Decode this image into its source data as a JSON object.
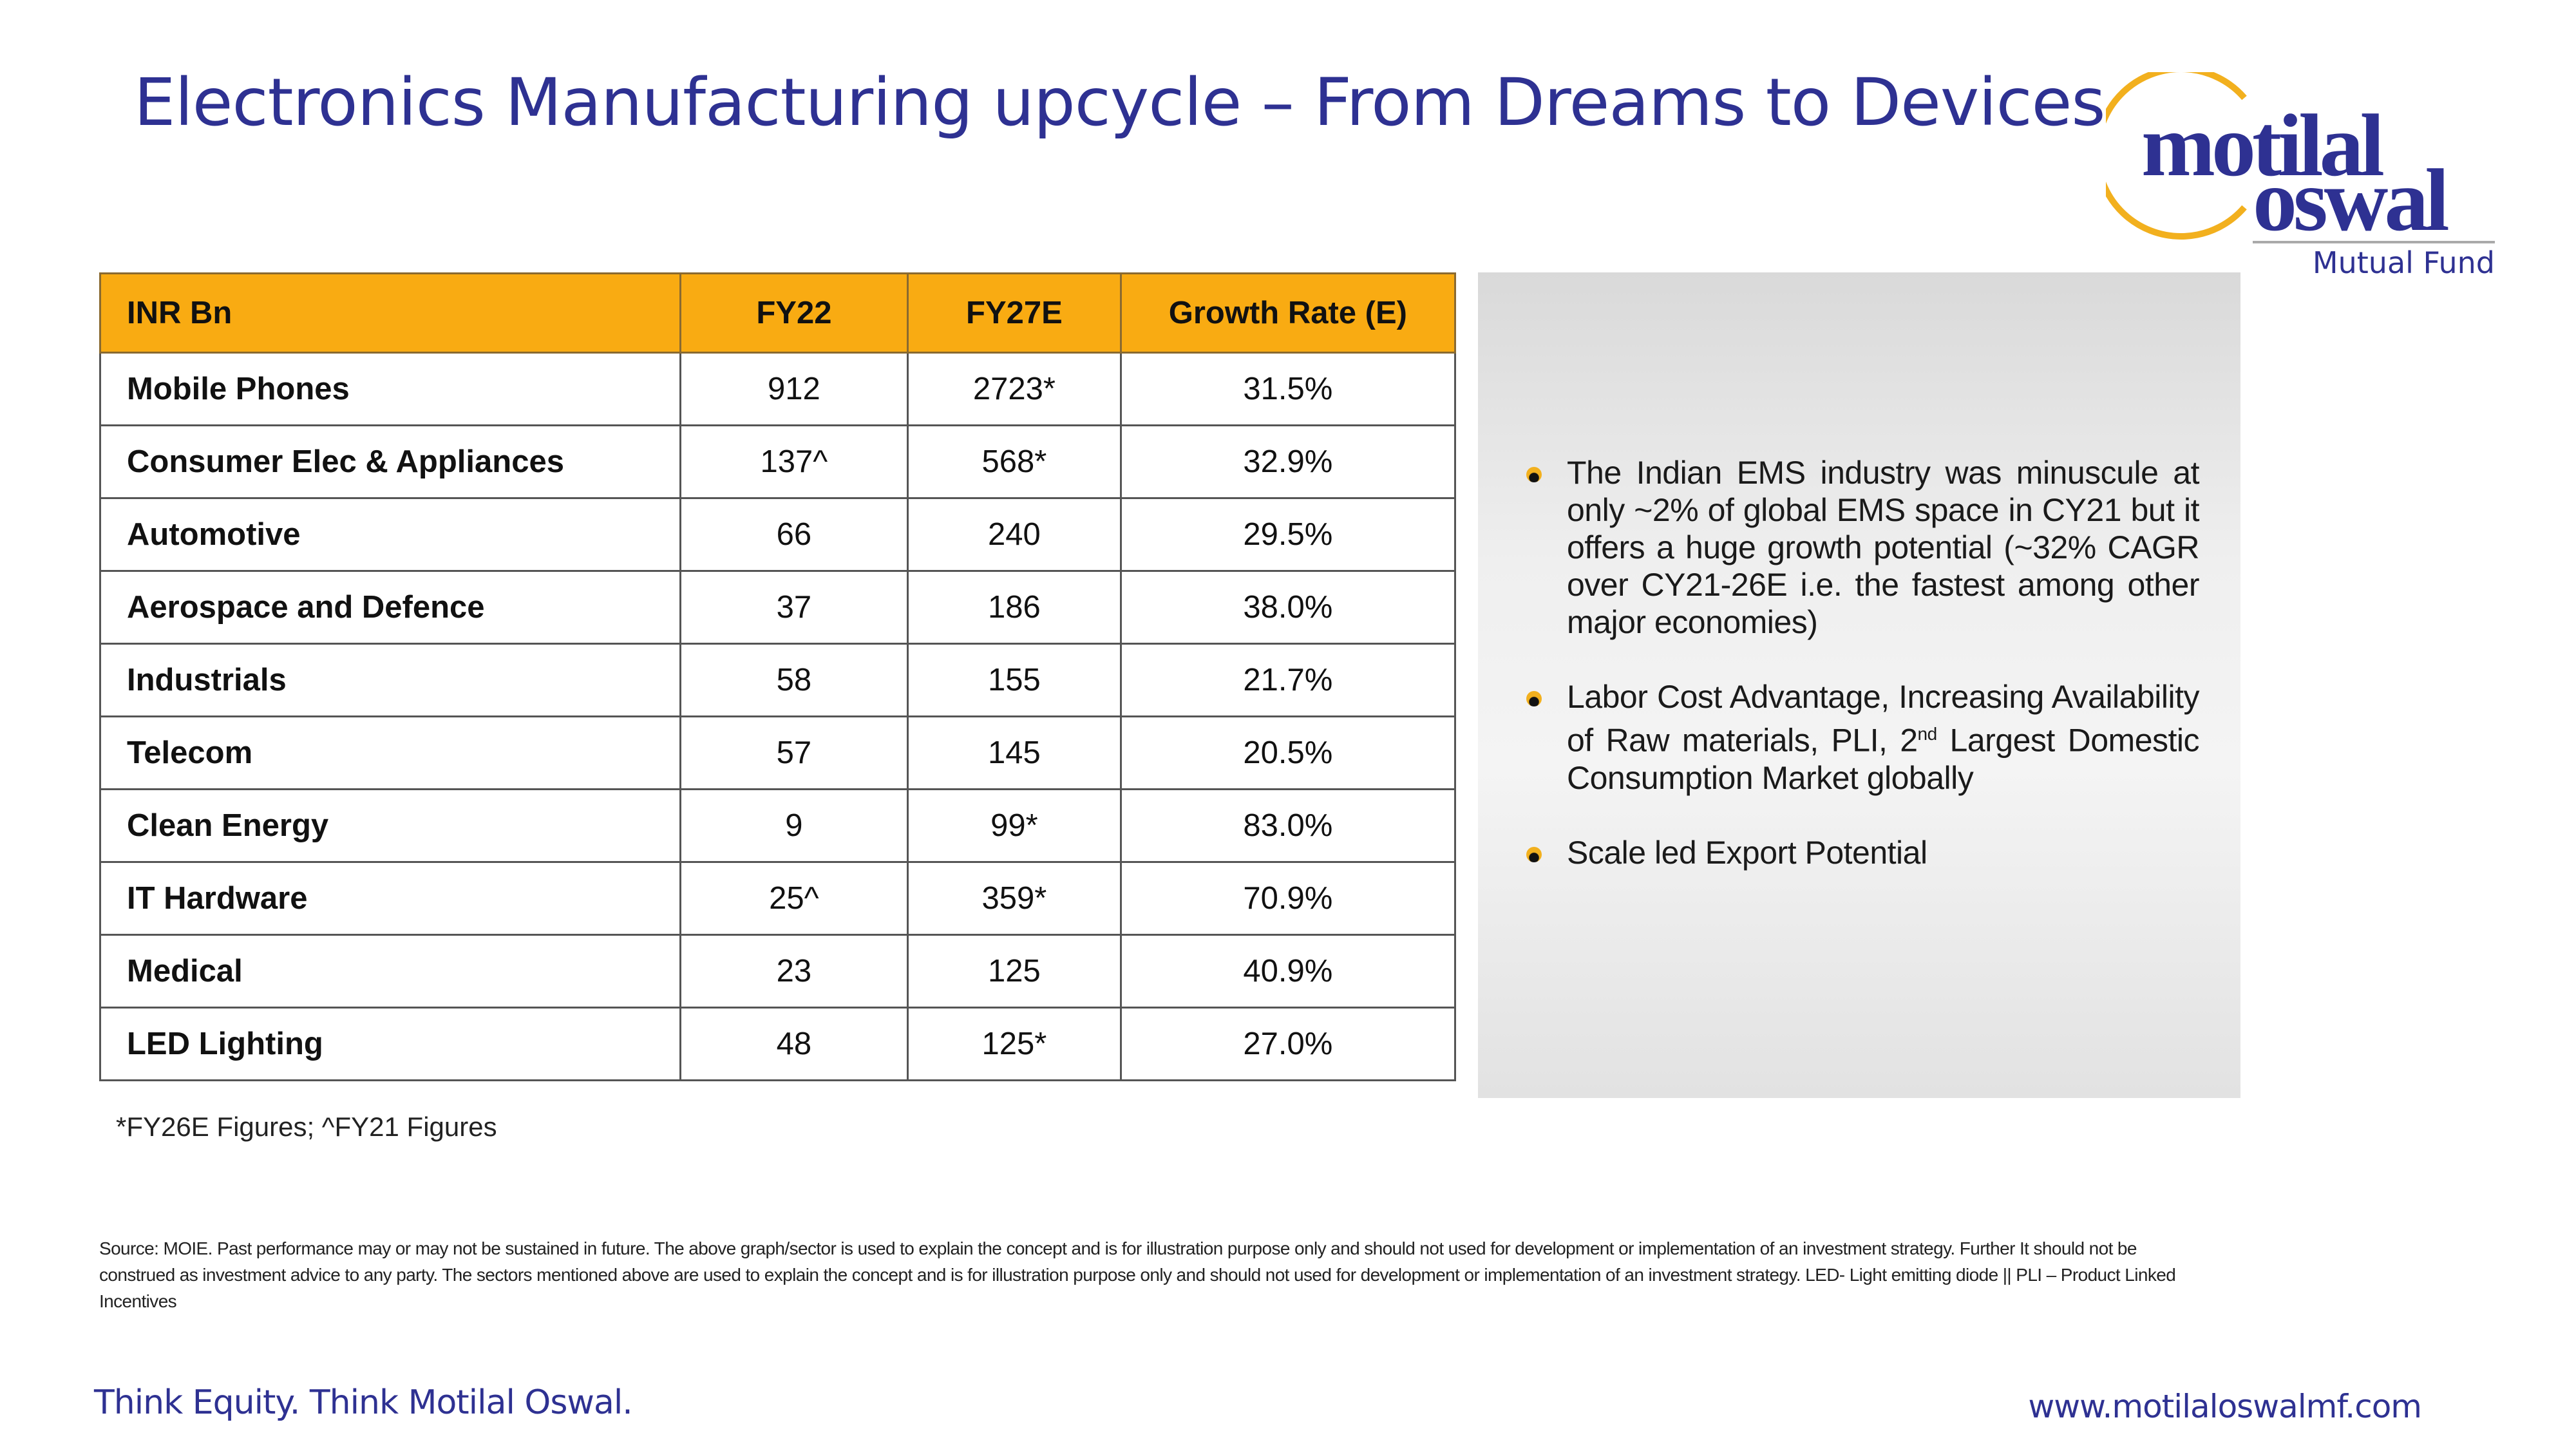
{
  "title": "Electronics Manufacturing upcycle – From Dreams to Devices",
  "logo": {
    "line1": "motilal",
    "line2": "oswal",
    "subtitle": "Mutual Fund",
    "brand_color": "#2e3192",
    "ring_color": "#f2b01e"
  },
  "table": {
    "headers": [
      "INR Bn",
      "FY22",
      "FY27E",
      "Growth Rate (E)"
    ],
    "header_color": "#f9ab12",
    "rows": [
      [
        "Mobile Phones",
        "912",
        "2723*",
        "31.5%"
      ],
      [
        "Consumer Elec & Appliances",
        "137^",
        "568*",
        "32.9%"
      ],
      [
        "Automotive",
        "66",
        "240",
        "29.5%"
      ],
      [
        "Aerospace and Defence",
        "37",
        "186",
        "38.0%"
      ],
      [
        "Industrials",
        "58",
        "155",
        "21.7%"
      ],
      [
        "Telecom",
        "57",
        "145",
        "20.5%"
      ],
      [
        "Clean Energy",
        "9",
        "99*",
        "83.0%"
      ],
      [
        "IT Hardware",
        "25^",
        "359*",
        "70.9%"
      ],
      [
        "Medical",
        "23",
        "125",
        "40.9%"
      ],
      [
        "LED Lighting",
        "48",
        "125*",
        "27.0%"
      ]
    ],
    "footnote": "*FY26E Figures; ^FY21 Figures"
  },
  "bullets": {
    "b1": "The Indian EMS industry was minuscule at only ~2% of global EMS space in CY21 but it offers a huge growth potential (~32% CAGR over CY21-26E i.e. the fastest among other major economies)",
    "b2_pre": "Labor Cost Advantage, Increasing Availability of Raw materials, PLI,  2",
    "b2_sup": "nd",
    "b2_post": " Largest Domestic Consumption Market globally",
    "b3": "Scale led Export Potential"
  },
  "source": "Source: MOIE. Past performance may or may not be sustained in future. The above graph/sector is used to explain the concept and is for illustration purpose only and should not used for development or implementation of an investment strategy. Further It should not be construed as investment advice to any party. The sectors mentioned above are used to explain the concept and is for illustration purpose only and should not used for development or implementation of an investment strategy. LED- Light emitting diode || PLI – Product Linked Incentives",
  "footer": {
    "tagline": "Think Equity. Think Motilal Oswal.",
    "url": "www.motilaloswalmf.com"
  }
}
